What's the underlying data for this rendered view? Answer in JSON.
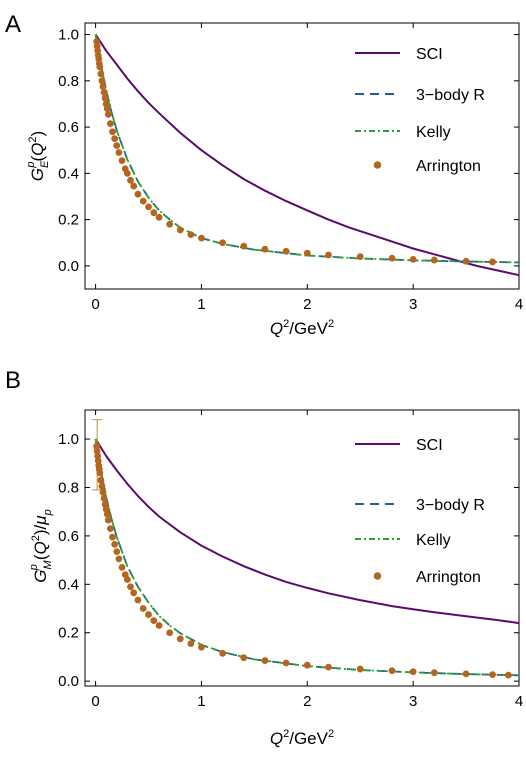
{
  "chart_data": [
    {
      "type": "line",
      "panel_label": "A",
      "xlabel": "Q²/GeV²",
      "ylabel": "G_E^p(Q²)",
      "xlim": [
        -0.1,
        4.0
      ],
      "ylim": [
        -0.1,
        1.05
      ],
      "xticks": [
        0,
        1,
        2,
        3,
        4
      ],
      "yticks": [
        0.0,
        0.2,
        0.4,
        0.6,
        0.8,
        1.0
      ],
      "ytick_labels": [
        "0.0",
        "0.2",
        "0.4",
        "0.6",
        "0.8",
        "1.0"
      ],
      "grid": false,
      "legend_position": "top-right",
      "series": [
        {
          "name": "SCI",
          "style": "solid",
          "color": "#5b0a6e",
          "x": [
            0,
            0.1,
            0.2,
            0.3,
            0.4,
            0.5,
            0.6,
            0.8,
            1.0,
            1.2,
            1.4,
            1.6,
            1.8,
            2.0,
            2.2,
            2.4,
            2.6,
            2.8,
            3.0,
            3.2,
            3.4,
            3.6,
            3.8,
            4.0
          ],
          "y": [
            1.0,
            0.93,
            0.87,
            0.81,
            0.755,
            0.705,
            0.66,
            0.575,
            0.5,
            0.435,
            0.375,
            0.325,
            0.28,
            0.24,
            0.2,
            0.165,
            0.135,
            0.105,
            0.075,
            0.05,
            0.025,
            0.0,
            -0.02,
            -0.04
          ]
        },
        {
          "name": "3−body R",
          "style": "dashed",
          "color": "#1f5fa0",
          "x": [
            0,
            0.05,
            0.1,
            0.15,
            0.2,
            0.3,
            0.4,
            0.5,
            0.6,
            0.7,
            0.8,
            1.0,
            1.2,
            1.5,
            2.0,
            2.5,
            3.0,
            3.5,
            4.0
          ],
          "y": [
            1.0,
            0.87,
            0.76,
            0.665,
            0.585,
            0.46,
            0.365,
            0.295,
            0.24,
            0.2,
            0.165,
            0.12,
            0.095,
            0.07,
            0.045,
            0.032,
            0.024,
            0.019,
            0.015
          ]
        },
        {
          "name": "Kelly",
          "style": "dash-dot",
          "color": "#2da02d",
          "x": [
            0,
            0.05,
            0.1,
            0.15,
            0.2,
            0.3,
            0.4,
            0.5,
            0.6,
            0.7,
            0.8,
            1.0,
            1.2,
            1.5,
            2.0,
            2.5,
            3.0,
            3.5,
            4.0
          ],
          "y": [
            1.0,
            0.87,
            0.76,
            0.665,
            0.585,
            0.46,
            0.365,
            0.295,
            0.24,
            0.2,
            0.165,
            0.12,
            0.095,
            0.07,
            0.045,
            0.032,
            0.024,
            0.019,
            0.015
          ]
        },
        {
          "name": "Arrington",
          "style": "points",
          "color": "#b5651d",
          "x": [
            0.01,
            0.015,
            0.02,
            0.025,
            0.03,
            0.035,
            0.04,
            0.05,
            0.06,
            0.07,
            0.08,
            0.09,
            0.1,
            0.11,
            0.12,
            0.14,
            0.16,
            0.18,
            0.2,
            0.22,
            0.25,
            0.28,
            0.3,
            0.33,
            0.36,
            0.4,
            0.45,
            0.5,
            0.55,
            0.6,
            0.7,
            0.8,
            0.9,
            1.0,
            1.2,
            1.4,
            1.6,
            1.8,
            2.0,
            2.2,
            2.5,
            2.8,
            3.0,
            3.2,
            3.5,
            3.75
          ],
          "y": [
            0.97,
            0.95,
            0.93,
            0.91,
            0.895,
            0.875,
            0.86,
            0.83,
            0.8,
            0.775,
            0.75,
            0.725,
            0.7,
            0.68,
            0.655,
            0.615,
            0.58,
            0.55,
            0.52,
            0.49,
            0.455,
            0.42,
            0.4,
            0.37,
            0.345,
            0.31,
            0.28,
            0.255,
            0.23,
            0.21,
            0.18,
            0.155,
            0.135,
            0.12,
            0.1,
            0.085,
            0.072,
            0.063,
            0.055,
            0.047,
            0.04,
            0.033,
            0.028,
            0.025,
            0.02,
            0.017
          ]
        }
      ]
    },
    {
      "type": "line",
      "panel_label": "B",
      "xlabel": "Q²/GeV²",
      "ylabel": "G_M^p(Q²)/μ_p",
      "xlim": [
        -0.1,
        4.0
      ],
      "ylim": [
        -0.02,
        1.12
      ],
      "xticks": [
        0,
        1,
        2,
        3,
        4
      ],
      "yticks": [
        0.0,
        0.2,
        0.4,
        0.6,
        0.8,
        1.0
      ],
      "ytick_labels": [
        "0.0",
        "0.2",
        "0.4",
        "0.6",
        "0.8",
        "1.0"
      ],
      "grid": false,
      "legend_position": "top-right",
      "series": [
        {
          "name": "SCI",
          "style": "solid",
          "color": "#5b0a6e",
          "x": [
            0,
            0.1,
            0.2,
            0.3,
            0.4,
            0.5,
            0.6,
            0.8,
            1.0,
            1.2,
            1.4,
            1.6,
            1.8,
            2.0,
            2.2,
            2.5,
            2.8,
            3.0,
            3.2,
            3.5,
            3.8,
            4.0
          ],
          "y": [
            1.0,
            0.93,
            0.87,
            0.815,
            0.765,
            0.72,
            0.68,
            0.615,
            0.56,
            0.515,
            0.475,
            0.44,
            0.41,
            0.385,
            0.363,
            0.335,
            0.31,
            0.297,
            0.285,
            0.268,
            0.252,
            0.24
          ]
        },
        {
          "name": "3−body R",
          "style": "dashed",
          "color": "#1f5fa0",
          "x": [
            0,
            0.05,
            0.1,
            0.15,
            0.2,
            0.3,
            0.4,
            0.5,
            0.6,
            0.7,
            0.8,
            1.0,
            1.2,
            1.5,
            2.0,
            2.5,
            3.0,
            3.5,
            4.0
          ],
          "y": [
            1.0,
            0.87,
            0.76,
            0.67,
            0.595,
            0.475,
            0.39,
            0.325,
            0.27,
            0.23,
            0.198,
            0.15,
            0.12,
            0.09,
            0.062,
            0.046,
            0.036,
            0.029,
            0.024
          ]
        },
        {
          "name": "Kelly",
          "style": "dash-dot",
          "color": "#2da02d",
          "x": [
            0,
            0.05,
            0.1,
            0.15,
            0.2,
            0.3,
            0.4,
            0.5,
            0.6,
            0.7,
            0.8,
            1.0,
            1.2,
            1.5,
            2.0,
            2.5,
            3.0,
            3.5,
            4.0
          ],
          "y": [
            1.0,
            0.87,
            0.76,
            0.67,
            0.595,
            0.475,
            0.39,
            0.325,
            0.27,
            0.23,
            0.198,
            0.15,
            0.12,
            0.09,
            0.062,
            0.046,
            0.036,
            0.029,
            0.024
          ]
        },
        {
          "name": "Arrington",
          "style": "points",
          "color": "#b5651d",
          "x": [
            0.01,
            0.015,
            0.02,
            0.025,
            0.03,
            0.035,
            0.04,
            0.05,
            0.06,
            0.07,
            0.08,
            0.09,
            0.1,
            0.11,
            0.12,
            0.14,
            0.16,
            0.18,
            0.2,
            0.22,
            0.25,
            0.28,
            0.3,
            0.33,
            0.36,
            0.4,
            0.45,
            0.5,
            0.55,
            0.6,
            0.7,
            0.8,
            0.9,
            1.0,
            1.2,
            1.4,
            1.6,
            1.8,
            2.0,
            2.2,
            2.5,
            2.8,
            3.0,
            3.2,
            3.5,
            3.75,
            3.9
          ],
          "y": [
            0.97,
            0.95,
            0.93,
            0.91,
            0.89,
            0.875,
            0.86,
            0.83,
            0.805,
            0.78,
            0.755,
            0.73,
            0.71,
            0.69,
            0.665,
            0.63,
            0.595,
            0.565,
            0.535,
            0.505,
            0.47,
            0.44,
            0.42,
            0.39,
            0.365,
            0.335,
            0.3,
            0.275,
            0.25,
            0.23,
            0.2,
            0.175,
            0.155,
            0.14,
            0.115,
            0.097,
            0.085,
            0.075,
            0.066,
            0.058,
            0.05,
            0.043,
            0.039,
            0.035,
            0.03,
            0.027,
            0.025
          ],
          "error_bar": {
            "x": 0.015,
            "y_low": 0.79,
            "y_high": 1.08
          }
        }
      ]
    }
  ]
}
